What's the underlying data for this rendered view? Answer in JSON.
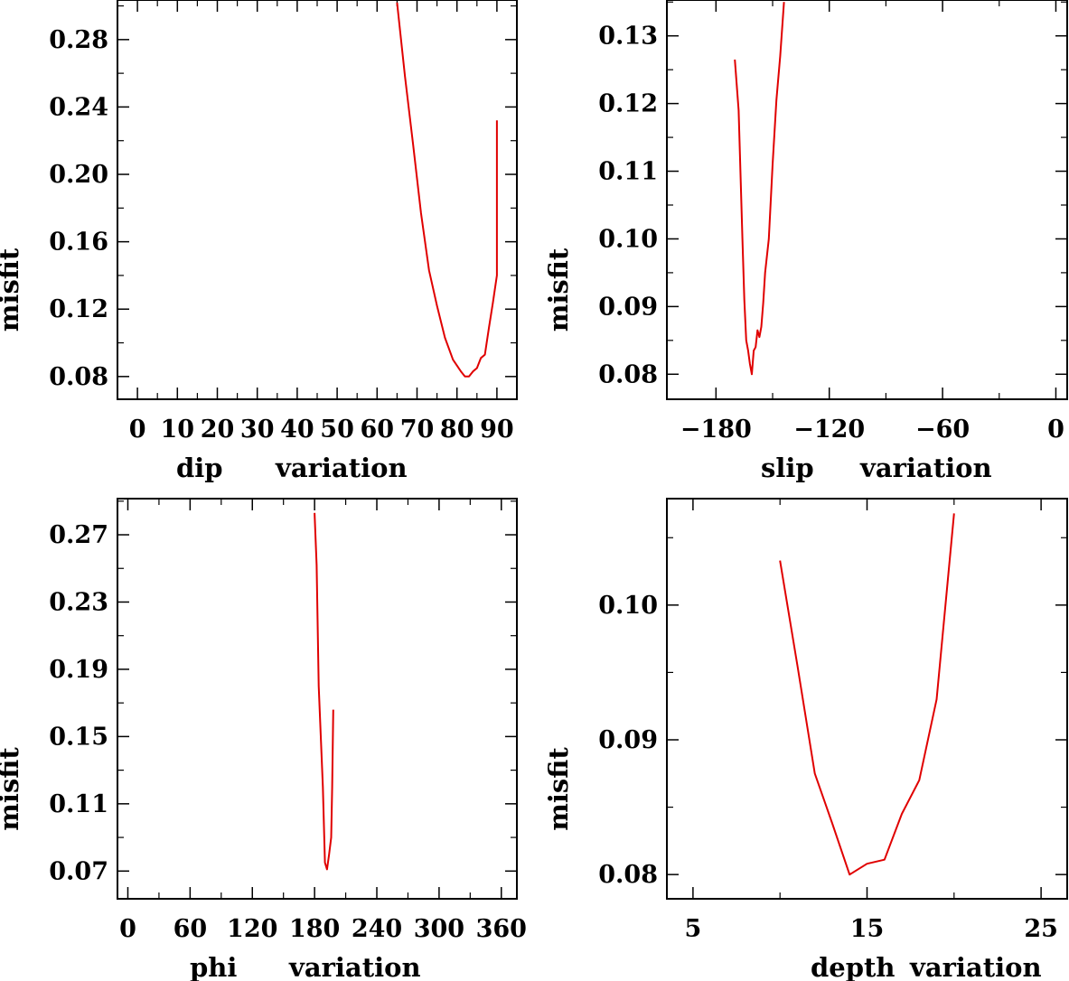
{
  "chart_data": [
    {
      "type": "line",
      "title": "",
      "xlabel_left": "dip",
      "xlabel_right": "variation",
      "ylabel": "misfit",
      "xlim": [
        -5,
        95
      ],
      "ylim": [
        0.0665,
        0.3035
      ],
      "xticks": [
        0,
        10,
        20,
        30,
        40,
        50,
        60,
        70,
        80,
        90
      ],
      "yticks": [
        0.08,
        0.12,
        0.16,
        0.2,
        0.24,
        0.28
      ],
      "xtick_labels": [
        "0",
        "10",
        "20",
        "30",
        "40",
        "50",
        "60",
        "70",
        "80",
        "90"
      ],
      "ytick_labels": [
        "0.08",
        "0.12",
        "0.16",
        "0.20",
        "0.24",
        "0.28"
      ],
      "line_color": "#e00000",
      "x": [
        65,
        67,
        69,
        71,
        73,
        75,
        77,
        79,
        81,
        82,
        83,
        84,
        85,
        86,
        87,
        88,
        89,
        90,
        90
      ],
      "y": [
        0.302,
        0.258,
        0.218,
        0.177,
        0.143,
        0.122,
        0.103,
        0.09,
        0.083,
        0.08,
        0.08,
        0.083,
        0.085,
        0.091,
        0.093,
        0.109,
        0.124,
        0.14,
        0.232
      ]
    },
    {
      "type": "line",
      "title": "",
      "xlabel_left": "slip",
      "xlabel_right": "variation",
      "ylabel": "misfit",
      "xlim": [
        -206,
        6
      ],
      "ylim": [
        0.0763,
        0.1353
      ],
      "xticks": [
        -180,
        -120,
        -60,
        0
      ],
      "yticks": [
        0.08,
        0.09,
        0.1,
        0.11,
        0.12,
        0.13
      ],
      "xtick_labels": [
        "−180",
        "−120",
        "−60",
        "0"
      ],
      "ytick_labels": [
        "0.08",
        "0.09",
        "0.10",
        "0.11",
        "0.12",
        "0.13"
      ],
      "line_color": "#e00000",
      "x": [
        -170,
        -168,
        -166,
        -165,
        -164,
        -163,
        -162,
        -161,
        -160,
        -159,
        -158,
        -157,
        -156,
        -155,
        -154,
        -152,
        -150,
        -148,
        -146,
        -144
      ],
      "y": [
        0.1265,
        0.119,
        0.1,
        0.091,
        0.085,
        0.0835,
        0.0815,
        0.08,
        0.0835,
        0.084,
        0.0865,
        0.0855,
        0.087,
        0.0905,
        0.095,
        0.1,
        0.111,
        0.1205,
        0.127,
        0.135
      ]
    },
    {
      "type": "line",
      "title": "",
      "xlabel_left": "phi",
      "xlabel_right": "variation",
      "ylabel": "misfit",
      "xlim": [
        -10,
        375
      ],
      "ylim": [
        0.0535,
        0.2915
      ],
      "xticks": [
        0,
        60,
        120,
        180,
        240,
        300,
        360
      ],
      "yticks": [
        0.07,
        0.11,
        0.15,
        0.19,
        0.23,
        0.27
      ],
      "xtick_labels": [
        "0",
        "60",
        "120",
        "180",
        "240",
        "300",
        "360"
      ],
      "ytick_labels": [
        "0.07",
        "0.11",
        "0.15",
        "0.19",
        "0.23",
        "0.27"
      ],
      "line_color": "#e00000",
      "x": [
        180,
        182,
        184,
        186,
        188,
        190,
        192,
        194,
        196,
        197,
        198
      ],
      "y": [
        0.283,
        0.252,
        0.18,
        0.15,
        0.12,
        0.075,
        0.071,
        0.08,
        0.09,
        0.12,
        0.166
      ]
    },
    {
      "type": "line",
      "title": "",
      "xlabel_left": "depth",
      "xlabel_right": "variation",
      "ylabel": "misfit",
      "xlim": [
        3.5,
        26.5
      ],
      "ylim": [
        0.0782,
        0.1079
      ],
      "xticks": [
        5,
        15,
        25
      ],
      "yticks": [
        0.08,
        0.09,
        0.1
      ],
      "xtick_labels": [
        "5",
        "15",
        "25"
      ],
      "ytick_labels": [
        "0.08",
        "0.09",
        "0.10"
      ],
      "line_color": "#e00000",
      "x": [
        10,
        11,
        12,
        13,
        14,
        15,
        16,
        17,
        18,
        19,
        20
      ],
      "y": [
        0.1033,
        0.0955,
        0.0875,
        0.0838,
        0.08,
        0.0808,
        0.0811,
        0.0845,
        0.087,
        0.093,
        0.1068
      ]
    }
  ]
}
